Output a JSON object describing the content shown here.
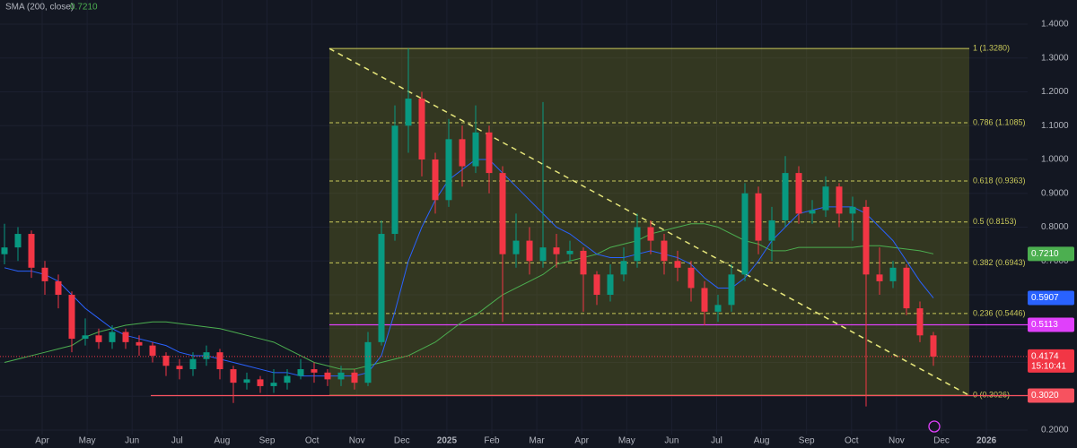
{
  "chart_data": {
    "type": "candlestick",
    "indicator_label": "SMA (200, close)",
    "indicator_value_label": "0.7210",
    "months": [
      "Apr",
      "May",
      "Jun",
      "Jul",
      "Aug",
      "Sep",
      "Oct",
      "Nov",
      "Dec",
      "2025",
      "Feb",
      "Mar",
      "Apr",
      "May",
      "Jun",
      "Jul",
      "Aug",
      "Sep",
      "Oct",
      "Nov",
      "Dec",
      "2026"
    ],
    "up_color": "#089981",
    "down_color": "#f23645",
    "open": [
      0.72,
      0.74,
      0.78,
      0.68,
      0.64,
      0.6,
      0.47,
      0.48,
      0.46,
      0.49,
      0.46,
      0.45,
      0.42,
      0.39,
      0.38,
      0.41,
      0.43,
      0.38,
      0.34,
      0.35,
      0.33,
      0.34,
      0.36,
      0.38,
      0.37,
      0.35,
      0.37,
      0.34,
      0.46,
      0.78,
      1.1,
      1.18,
      1.0,
      0.88,
      1.06,
      0.98,
      1.08,
      0.96,
      0.72,
      0.76,
      0.7,
      0.74,
      0.72,
      0.73,
      0.66,
      0.6,
      0.66,
      0.7,
      0.8,
      0.76,
      0.7,
      0.68,
      0.62,
      0.55,
      0.57,
      0.66,
      0.9,
      0.76,
      0.82,
      0.96,
      0.84,
      0.85,
      0.92,
      0.84,
      0.86,
      0.66,
      0.64,
      0.68,
      0.56,
      0.48
    ],
    "high": [
      0.81,
      0.8,
      0.79,
      0.7,
      0.66,
      0.61,
      0.53,
      0.5,
      0.51,
      0.5,
      0.48,
      0.46,
      0.43,
      0.41,
      0.43,
      0.45,
      0.44,
      0.39,
      0.37,
      0.36,
      0.38,
      0.38,
      0.41,
      0.4,
      0.38,
      0.39,
      0.38,
      0.49,
      0.82,
      1.16,
      1.328,
      1.2,
      1.02,
      1.12,
      1.1,
      1.16,
      1.1,
      0.98,
      0.84,
      0.8,
      1.17,
      0.78,
      0.76,
      0.74,
      0.67,
      0.69,
      0.74,
      0.84,
      0.82,
      0.78,
      0.73,
      0.7,
      0.64,
      0.6,
      0.69,
      0.93,
      0.92,
      0.86,
      1.01,
      0.98,
      0.88,
      0.95,
      0.93,
      0.89,
      0.88,
      0.74,
      0.7,
      0.69,
      0.58,
      0.49
    ],
    "low": [
      0.69,
      0.7,
      0.65,
      0.6,
      0.56,
      0.43,
      0.45,
      0.44,
      0.44,
      0.44,
      0.42,
      0.4,
      0.36,
      0.35,
      0.36,
      0.39,
      0.35,
      0.28,
      0.32,
      0.31,
      0.31,
      0.32,
      0.35,
      0.34,
      0.33,
      0.33,
      0.32,
      0.33,
      0.45,
      0.76,
      1.02,
      0.95,
      0.84,
      0.86,
      0.92,
      0.96,
      0.9,
      0.52,
      0.68,
      0.66,
      0.68,
      0.68,
      0.7,
      0.55,
      0.57,
      0.58,
      0.64,
      0.68,
      0.72,
      0.66,
      0.64,
      0.58,
      0.51,
      0.52,
      0.55,
      0.64,
      0.72,
      0.7,
      0.8,
      0.81,
      0.81,
      0.83,
      0.8,
      0.76,
      0.27,
      0.6,
      0.62,
      0.54,
      0.46,
      0.39
    ],
    "close": [
      0.74,
      0.78,
      0.68,
      0.64,
      0.6,
      0.47,
      0.48,
      0.46,
      0.49,
      0.46,
      0.45,
      0.42,
      0.39,
      0.38,
      0.41,
      0.43,
      0.38,
      0.34,
      0.35,
      0.33,
      0.34,
      0.36,
      0.38,
      0.37,
      0.35,
      0.37,
      0.34,
      0.46,
      0.78,
      1.1,
      1.18,
      1.0,
      0.88,
      1.06,
      0.98,
      1.08,
      0.96,
      0.72,
      0.76,
      0.7,
      0.74,
      0.72,
      0.73,
      0.66,
      0.6,
      0.66,
      0.7,
      0.8,
      0.76,
      0.7,
      0.68,
      0.62,
      0.55,
      0.57,
      0.66,
      0.9,
      0.76,
      0.82,
      0.96,
      0.84,
      0.85,
      0.92,
      0.84,
      0.86,
      0.66,
      0.64,
      0.68,
      0.56,
      0.48,
      0.4174
    ],
    "last_price_label": "0.4174",
    "countdown": "15:10:41",
    "series": [
      {
        "name": "SMA (200, close)",
        "color": "#4caf50",
        "last_label": "0.7210",
        "values": [
          0.4,
          0.41,
          0.42,
          0.43,
          0.44,
          0.45,
          0.475,
          0.49,
          0.5,
          0.51,
          0.515,
          0.52,
          0.52,
          0.515,
          0.51,
          0.505,
          0.5,
          0.49,
          0.48,
          0.47,
          0.46,
          0.44,
          0.42,
          0.4,
          0.39,
          0.38,
          0.38,
          0.39,
          0.4,
          0.41,
          0.42,
          0.44,
          0.46,
          0.49,
          0.52,
          0.54,
          0.57,
          0.6,
          0.62,
          0.64,
          0.66,
          0.69,
          0.7,
          0.71,
          0.72,
          0.74,
          0.75,
          0.76,
          0.78,
          0.79,
          0.8,
          0.81,
          0.81,
          0.8,
          0.78,
          0.76,
          0.75,
          0.73,
          0.73,
          0.74,
          0.74,
          0.74,
          0.74,
          0.74,
          0.745,
          0.745,
          0.74,
          0.735,
          0.73,
          0.721
        ]
      },
      {
        "color": "#2962ff",
        "last_label": "0.5907",
        "values": [
          0.68,
          0.67,
          0.67,
          0.66,
          0.64,
          0.6,
          0.56,
          0.53,
          0.5,
          0.48,
          0.47,
          0.46,
          0.45,
          0.43,
          0.42,
          0.42,
          0.41,
          0.4,
          0.39,
          0.38,
          0.37,
          0.37,
          0.36,
          0.36,
          0.36,
          0.36,
          0.36,
          0.37,
          0.42,
          0.55,
          0.7,
          0.8,
          0.88,
          0.94,
          0.97,
          1.0,
          1.0,
          0.96,
          0.92,
          0.88,
          0.84,
          0.8,
          0.78,
          0.75,
          0.72,
          0.71,
          0.71,
          0.72,
          0.73,
          0.72,
          0.71,
          0.69,
          0.65,
          0.62,
          0.62,
          0.65,
          0.7,
          0.76,
          0.8,
          0.84,
          0.85,
          0.86,
          0.86,
          0.86,
          0.84,
          0.8,
          0.76,
          0.7,
          0.64,
          0.5907
        ]
      }
    ],
    "price_lines": [
      {
        "value": 0.5113,
        "label": "0.5113",
        "color": "#e040fb"
      },
      {
        "value": 0.302,
        "label": "0.3020",
        "color": "#f7525f"
      }
    ],
    "fib": {
      "color": "#c9c95a",
      "levels": [
        {
          "value": 1.328,
          "label": "1 (1.3280)"
        },
        {
          "value": 1.1085,
          "label": "0.786 (1.1085)"
        },
        {
          "value": 0.9363,
          "label": "0.618 (0.9363)"
        },
        {
          "value": 0.8153,
          "label": "0.5 (0.8153)"
        },
        {
          "value": 0.6943,
          "label": "0.382 (0.6943)"
        },
        {
          "value": 0.5446,
          "label": "0.236 (0.5446)"
        },
        {
          "value": 0.3026,
          "label": "0 (0.3026)"
        }
      ]
    },
    "ylim": [
      0.2,
      1.4
    ],
    "yticks": [
      {
        "value": 0.2,
        "label": "0.2000"
      },
      {
        "value": 0.3,
        "label": "0.3000"
      },
      {
        "value": 0.4,
        "label": "0.4000"
      },
      {
        "value": 0.5,
        "label": "0.5000"
      },
      {
        "value": 0.6,
        "label": "0.6000"
      },
      {
        "value": 0.7,
        "label": "0.7000"
      },
      {
        "value": 0.8,
        "label": "0.8000"
      },
      {
        "value": 0.9,
        "label": "0.9000"
      },
      {
        "value": 1.0,
        "label": "1.0000"
      },
      {
        "value": 1.1,
        "label": "1.1000"
      },
      {
        "value": 1.2,
        "label": "1.2000"
      },
      {
        "value": 1.3,
        "label": "1.3000"
      },
      {
        "value": 1.4,
        "label": "1.4000"
      }
    ],
    "grid": true
  }
}
